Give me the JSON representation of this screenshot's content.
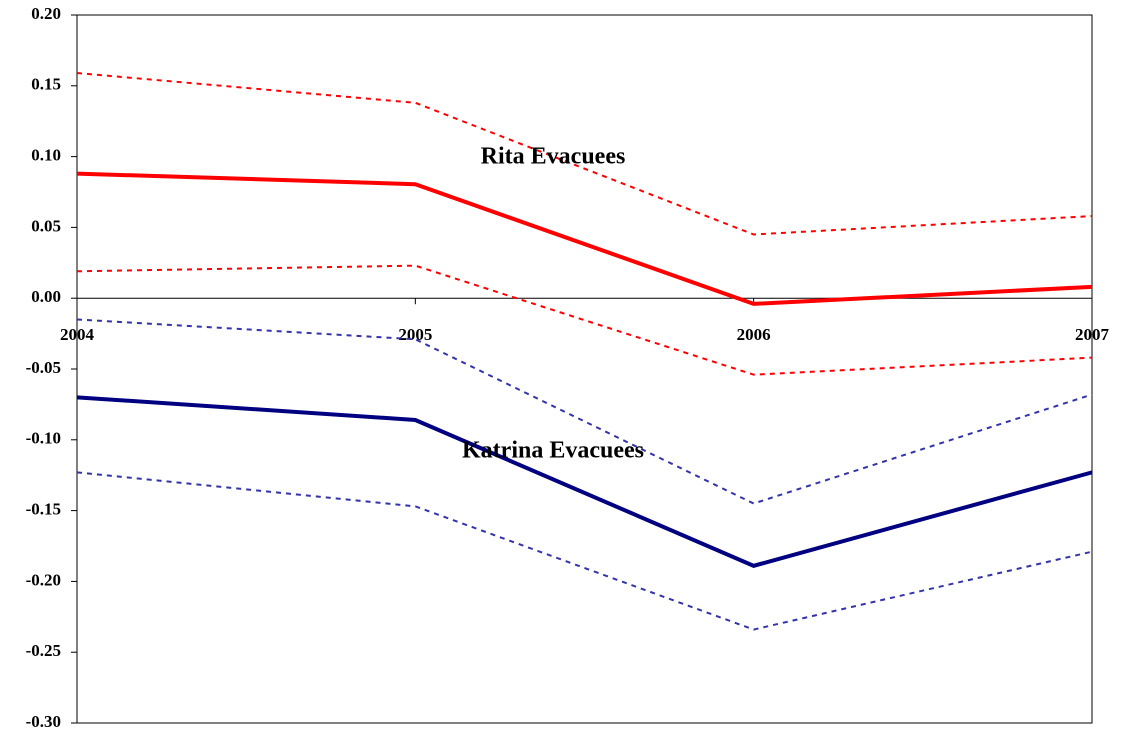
{
  "chart_data": {
    "type": "line",
    "categories": [
      "2004",
      "2005",
      "2006",
      "2007"
    ],
    "annotations": [
      "Rita Evacuees",
      "Katrina Evacuees"
    ],
    "ylim": [
      -0.3,
      0.2
    ],
    "yticks": [
      {
        "value": -0.3,
        "label": "-0.30"
      },
      {
        "value": -0.25,
        "label": "-0.25"
      },
      {
        "value": -0.2,
        "label": "-0.20"
      },
      {
        "value": -0.15,
        "label": "-0.15"
      },
      {
        "value": -0.1,
        "label": "-0.10"
      },
      {
        "value": -0.05,
        "label": "-0.05"
      },
      {
        "value": 0,
        "label": "0.00"
      },
      {
        "value": 0.05,
        "label": "0.05"
      },
      {
        "value": 0.1,
        "label": "0.10"
      },
      {
        "value": 0.15,
        "label": "0.15"
      },
      {
        "value": 0.2,
        "label": "0.20"
      }
    ],
    "grid": false,
    "series": [
      {
        "color": "#ff0000",
        "dashed": false,
        "values": [
          0.088,
          0.0805,
          -0.004,
          0.008
        ]
      },
      {
        "color": "#ff0000",
        "dashed": true,
        "values": [
          0.159,
          0.138,
          0.045,
          0.058
        ]
      },
      {
        "color": "#ff0000",
        "dashed": true,
        "values": [
          0.019,
          0.023,
          -0.054,
          -0.042
        ]
      },
      {
        "color": "#000080",
        "dashed": false,
        "values": [
          -0.07,
          -0.086,
          -0.189,
          -0.123
        ]
      },
      {
        "color": "#3333aa",
        "dashed": true,
        "values": [
          -0.015,
          -0.029,
          -0.145,
          -0.068
        ]
      },
      {
        "color": "#3333aa",
        "dashed": true,
        "values": [
          -0.123,
          -0.147,
          -0.234,
          -0.179
        ]
      }
    ]
  }
}
